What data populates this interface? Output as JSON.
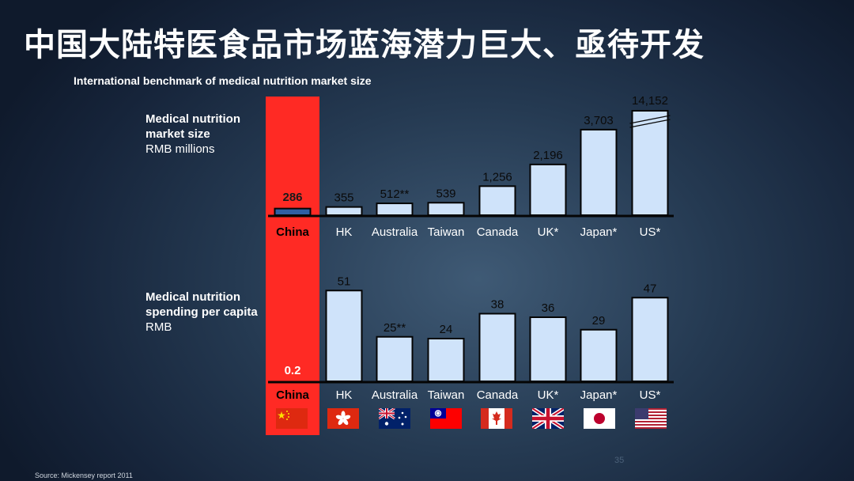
{
  "title": "中国大陆特医食品市场蓝海潜力巨大、亟待开发",
  "chart_data": [
    {
      "type": "bar",
      "title": "International benchmark of medical nutrition market size",
      "ylabel_bold": "Medical nutrition market size",
      "ylabel_line1": "Medical nutrition",
      "ylabel_line2": "market size",
      "ylabel_unit": "RMB millions",
      "categories": [
        "China",
        "HK",
        "Australia",
        "Taiwan",
        "Canada",
        "UK*",
        "Japan*",
        "US*"
      ],
      "values": [
        286,
        355,
        512,
        539,
        1256,
        2196,
        3703,
        14152
      ],
      "value_labels": [
        "286",
        "355",
        "512**",
        "539",
        "1,256",
        "2,196",
        "3,703",
        "14,152"
      ],
      "axis_break": "US* bar truncated (broken axis)",
      "ylim": [
        0,
        4800
      ]
    },
    {
      "type": "bar",
      "ylabel_line1": "Medical nutrition",
      "ylabel_line2": "spending per capita",
      "ylabel_unit": "RMB",
      "categories": [
        "China",
        "HK",
        "Australia",
        "Taiwan",
        "Canada",
        "UK*",
        "Japan*",
        "US*"
      ],
      "values": [
        0.2,
        51,
        25,
        24,
        38,
        36,
        29,
        47
      ],
      "value_labels": [
        "0.2",
        "51",
        "25**",
        "24",
        "38",
        "36",
        "29",
        "47"
      ],
      "ylim": [
        0,
        60
      ]
    }
  ],
  "flags": [
    {
      "country": "China",
      "icon": "china-flag-icon"
    },
    {
      "country": "HK",
      "icon": "hong-kong-flag-icon"
    },
    {
      "country": "Australia",
      "icon": "australia-flag-icon"
    },
    {
      "country": "Taiwan",
      "icon": "taiwan-flag-icon"
    },
    {
      "country": "Canada",
      "icon": "canada-flag-icon"
    },
    {
      "country": "UK",
      "icon": "uk-flag-icon"
    },
    {
      "country": "Japan",
      "icon": "japan-flag-icon"
    },
    {
      "country": "US",
      "icon": "us-flag-icon"
    }
  ],
  "colors": {
    "highlight": "#ff2a24",
    "bar_fill": "#cfe3fa",
    "china_bar": "#2f5fa3",
    "axis": "#050505"
  },
  "source": "Source: Mickensey  report 2011",
  "page_number": "35"
}
